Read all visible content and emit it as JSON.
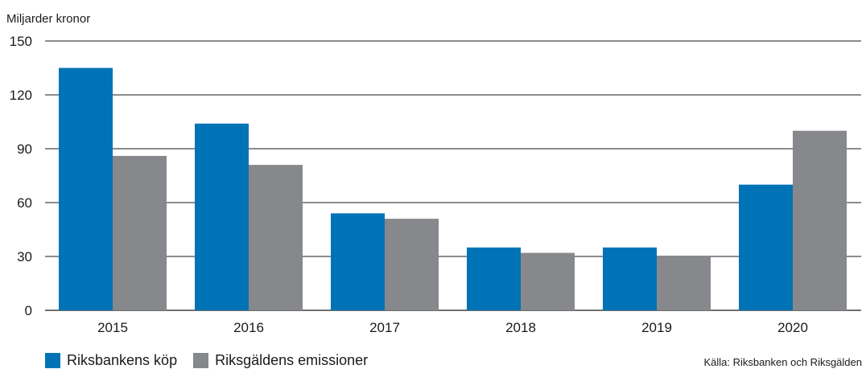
{
  "chart_data": {
    "type": "bar",
    "title": "",
    "ylabel": "Miljarder kronor",
    "xlabel": "",
    "categories": [
      "2015",
      "2016",
      "2017",
      "2018",
      "2019",
      "2020"
    ],
    "ylim": [
      0,
      150
    ],
    "yticks": [
      0,
      30,
      60,
      90,
      120,
      150
    ],
    "grid": true,
    "series": [
      {
        "name": "Riksbankens köp",
        "color": "#0073b7",
        "values": [
          135,
          104,
          54,
          35,
          35,
          70
        ]
      },
      {
        "name": "Riksgäldens emissioner",
        "color": "#87888b",
        "values": [
          86,
          81,
          51,
          32,
          30,
          100
        ]
      }
    ],
    "legend_position": "bottom-left"
  },
  "source": "Källa: Riksbanken och Riksgälden"
}
